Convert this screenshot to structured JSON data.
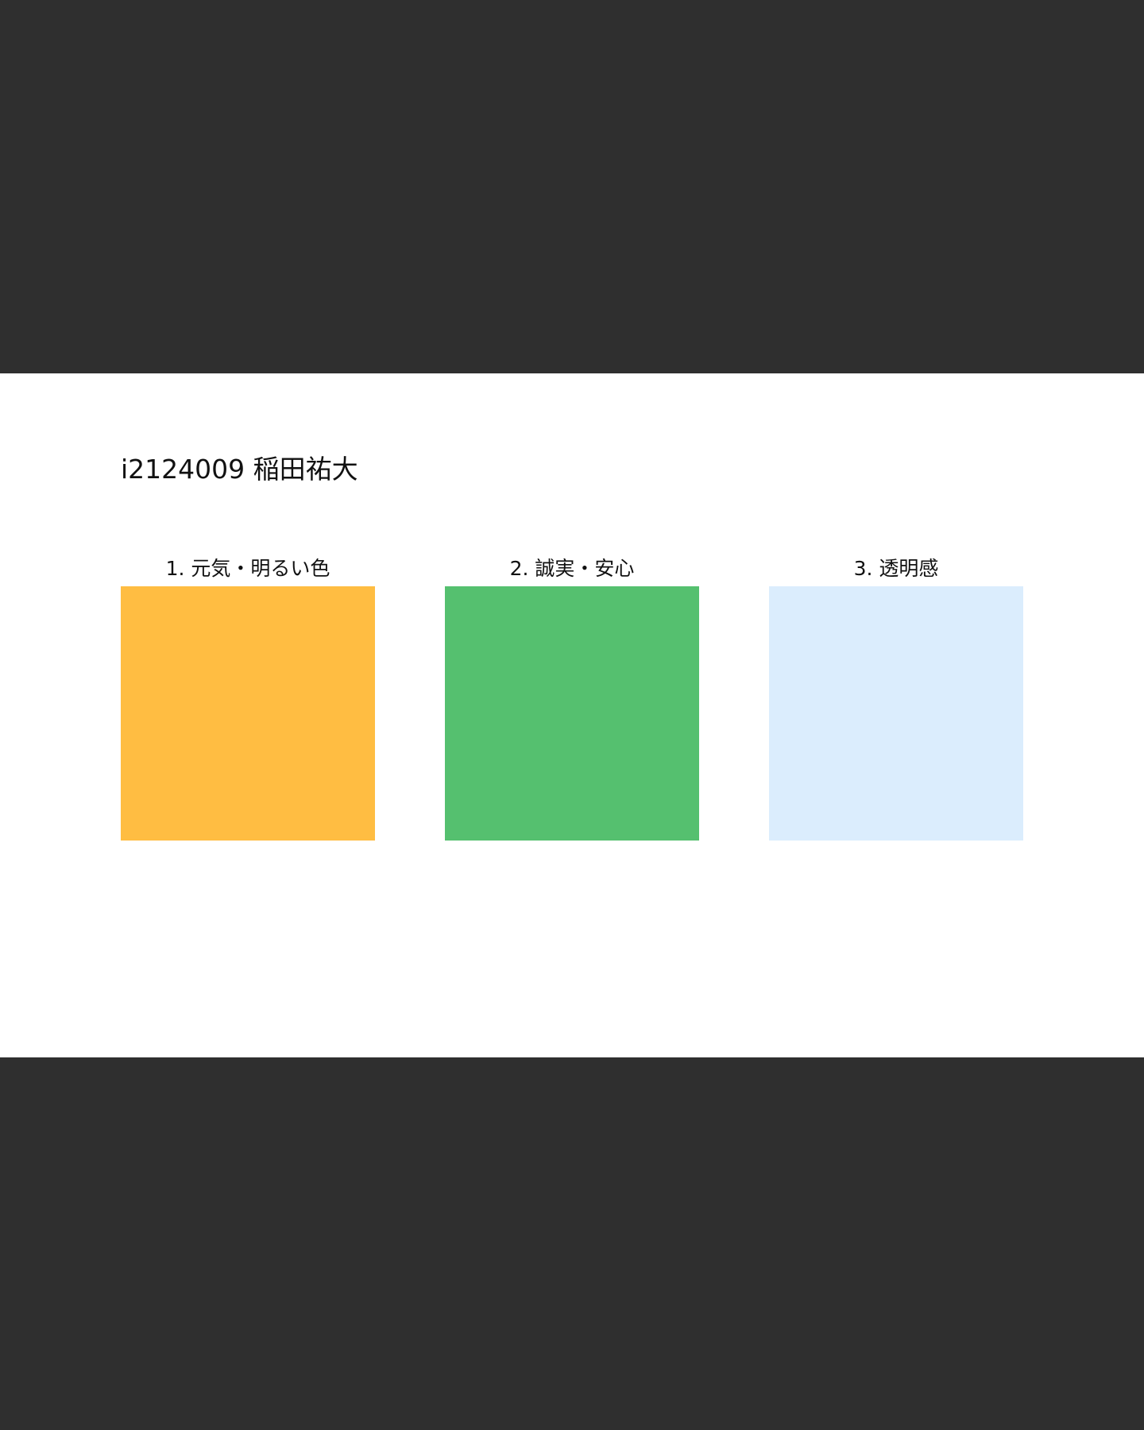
{
  "page": {
    "title": "i2124009 稲田祐大"
  },
  "swatches": [
    {
      "label": "1. 元気・明るい色",
      "color": "#ffbd42"
    },
    {
      "label": "2. 誠実・安心",
      "color": "#55c06f"
    },
    {
      "label": "3. 透明感",
      "color": "#dbedfd"
    }
  ],
  "theme": {
    "background": "#2f2f2f",
    "surface": "#ffffff",
    "text": "#111111"
  }
}
